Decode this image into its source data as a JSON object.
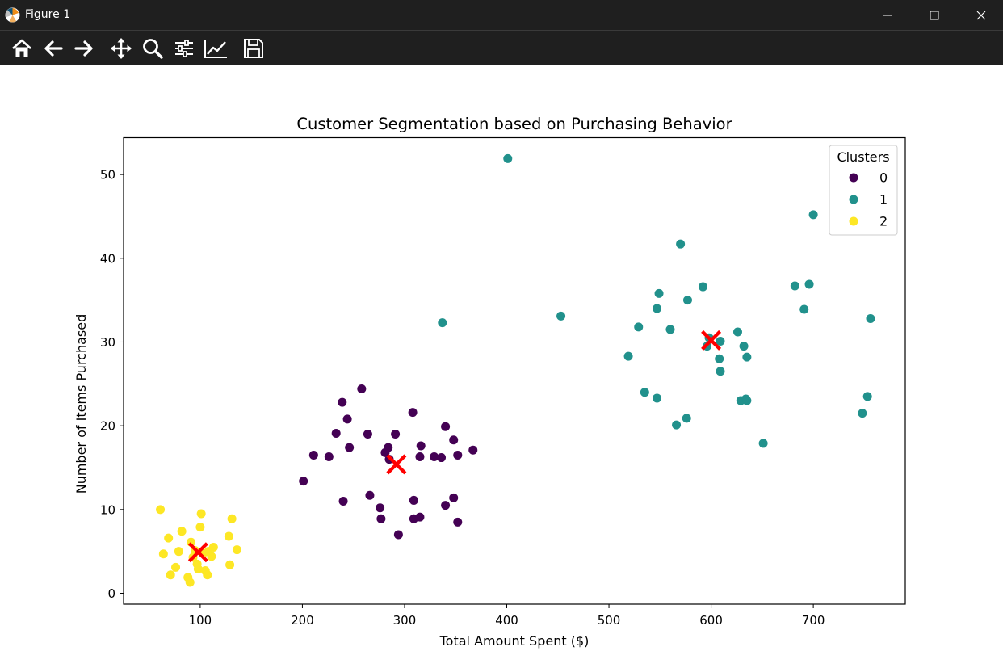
{
  "window": {
    "title": "Figure 1"
  },
  "toolbar": {
    "buttons": [
      "home-icon",
      "back-arrow-icon",
      "forward-arrow-icon",
      "pan-icon",
      "zoom-icon",
      "configure-subplots-icon",
      "edit-axis-icon",
      "save-icon"
    ]
  },
  "colors": {
    "titlebar_bg": "#1f1f1f",
    "cluster_0": "#440154",
    "cluster_1": "#21918c",
    "cluster_2": "#fde725",
    "centroid": "#ff0000"
  },
  "chart_data": {
    "type": "scatter",
    "title": "Customer Segmentation based on Purchasing Behavior",
    "xlabel": "Total Amount Spent ($)",
    "ylabel": "Number of Items Purchased",
    "xlim": [
      25,
      790
    ],
    "ylim": [
      -1.3,
      54.4
    ],
    "xticks": [
      100,
      200,
      300,
      400,
      500,
      600,
      700
    ],
    "yticks": [
      0,
      10,
      20,
      30,
      40,
      50
    ],
    "grid": false,
    "legend": {
      "title": "Clusters",
      "position": "top-right",
      "entries": [
        "0",
        "1",
        "2"
      ]
    },
    "series": [
      {
        "name": "0",
        "color": "#440154",
        "points": [
          [
            258,
            24.4
          ],
          [
            239,
            22.8
          ],
          [
            244,
            20.8
          ],
          [
            233,
            19.1
          ],
          [
            246,
            17.4
          ],
          [
            211,
            16.5
          ],
          [
            226,
            16.3
          ],
          [
            201,
            13.4
          ],
          [
            240,
            11.0
          ],
          [
            264,
            19.0
          ],
          [
            281,
            16.8
          ],
          [
            284,
            17.4
          ],
          [
            285,
            16.0
          ],
          [
            291,
            19.0
          ],
          [
            266,
            11.7
          ],
          [
            276,
            10.2
          ],
          [
            277,
            8.9
          ],
          [
            294,
            7.0
          ],
          [
            308,
            21.6
          ],
          [
            316,
            17.6
          ],
          [
            315,
            16.3
          ],
          [
            309,
            11.1
          ],
          [
            309,
            8.9
          ],
          [
            315,
            9.1
          ],
          [
            340,
            19.9
          ],
          [
            329,
            16.3
          ],
          [
            336,
            16.2
          ],
          [
            348,
            18.3
          ],
          [
            352,
            16.5
          ],
          [
            348,
            11.4
          ],
          [
            340,
            10.5
          ],
          [
            352,
            8.5
          ],
          [
            367,
            17.1
          ]
        ]
      },
      {
        "name": "1",
        "color": "#21918c",
        "points": [
          [
            401,
            51.9
          ],
          [
            337,
            32.3
          ],
          [
            453,
            33.1
          ],
          [
            570,
            41.7
          ],
          [
            549,
            35.8
          ],
          [
            547,
            34.0
          ],
          [
            529,
            31.8
          ],
          [
            519,
            28.3
          ],
          [
            560,
            31.5
          ],
          [
            577,
            35.0
          ],
          [
            592,
            36.6
          ],
          [
            598,
            30.5
          ],
          [
            596,
            29.5
          ],
          [
            609,
            30.1
          ],
          [
            608,
            28.0
          ],
          [
            609,
            26.5
          ],
          [
            626,
            31.2
          ],
          [
            632,
            29.5
          ],
          [
            635,
            28.2
          ],
          [
            535,
            24.0
          ],
          [
            547,
            23.3
          ],
          [
            566,
            20.1
          ],
          [
            576,
            20.9
          ],
          [
            629,
            23.0
          ],
          [
            634,
            23.2
          ],
          [
            635,
            23.0
          ],
          [
            651,
            17.9
          ],
          [
            682,
            36.7
          ],
          [
            696,
            36.9
          ],
          [
            691,
            33.9
          ],
          [
            700,
            45.2
          ],
          [
            756,
            32.8
          ],
          [
            753,
            23.5
          ],
          [
            748,
            21.5
          ]
        ]
      },
      {
        "name": "2",
        "color": "#fde725",
        "points": [
          [
            61,
            10.0
          ],
          [
            64,
            4.7
          ],
          [
            69,
            6.6
          ],
          [
            71,
            2.2
          ],
          [
            76,
            3.1
          ],
          [
            79,
            5.0
          ],
          [
            82,
            7.4
          ],
          [
            88,
            1.9
          ],
          [
            90,
            1.3
          ],
          [
            91,
            6.1
          ],
          [
            93,
            4.3
          ],
          [
            95,
            5.1
          ],
          [
            97,
            3.5
          ],
          [
            98,
            2.9
          ],
          [
            100,
            7.9
          ],
          [
            101,
            9.5
          ],
          [
            103,
            4.8
          ],
          [
            105,
            2.7
          ],
          [
            107,
            2.2
          ],
          [
            108,
            5.0
          ],
          [
            111,
            4.4
          ],
          [
            113,
            5.5
          ],
          [
            128,
            6.8
          ],
          [
            129,
            3.4
          ],
          [
            131,
            8.9
          ],
          [
            136,
            5.2
          ]
        ]
      }
    ],
    "centroids": [
      {
        "cluster": "0",
        "x": 292,
        "y": 15.4
      },
      {
        "cluster": "1",
        "x": 600,
        "y": 30.2
      },
      {
        "cluster": "2",
        "x": 98,
        "y": 4.9
      }
    ]
  }
}
